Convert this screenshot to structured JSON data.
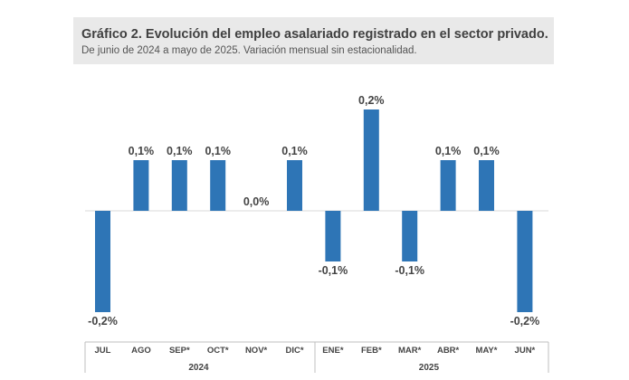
{
  "header": {
    "title": "Gráfico 2. Evolución del empleo asalariado registrado en el sector privado.",
    "subtitle": "De junio de 2024 a mayo de 2025. Variación mensual sin estacionalidad."
  },
  "colors": {
    "bar": "#2e75b6",
    "header_bg": "#e9e9e9",
    "axis": "#bfbfbf"
  },
  "chart_data": {
    "type": "bar",
    "title": "Gráfico 2. Evolución del empleo asalariado registrado en el sector privado.",
    "subtitle": "De junio de 2024 a mayo de 2025. Variación mensual sin estacionalidad.",
    "categories": [
      "JUL",
      "AGO",
      "SEP*",
      "OCT*",
      "NOV*",
      "DIC*",
      "ENE*",
      "FEB*",
      "MAR*",
      "ABR*",
      "MAY*",
      "JUN*"
    ],
    "groups": [
      {
        "label": "2024",
        "categories": [
          "JUL",
          "AGO",
          "SEP*",
          "OCT*",
          "NOV*",
          "DIC*"
        ]
      },
      {
        "label": "2025",
        "categories": [
          "ENE*",
          "FEB*",
          "MAR*",
          "ABR*",
          "MAY*",
          "JUN*"
        ]
      }
    ],
    "values": [
      -0.2,
      0.1,
      0.1,
      0.1,
      0.0,
      0.1,
      -0.1,
      0.2,
      -0.1,
      0.1,
      0.1,
      -0.2
    ],
    "labels": [
      "-0,2%",
      "0,1%",
      "0,1%",
      "0,1%",
      "0,0%",
      "0,1%",
      "-0,1%",
      "0,2%",
      "-0,1%",
      "0,1%",
      "0,1%",
      "-0,2%"
    ],
    "ylim": [
      -0.2,
      0.2
    ],
    "grid": false,
    "legend": "none"
  }
}
